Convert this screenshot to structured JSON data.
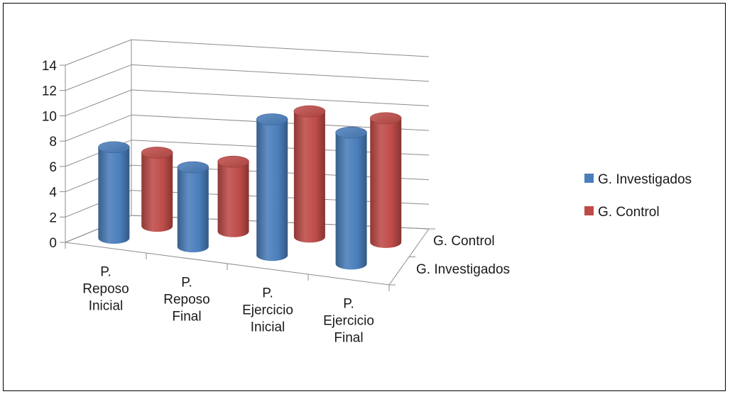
{
  "chart_data": {
    "type": "bar",
    "style": "3d-cylinder",
    "categories": [
      [
        "P.",
        "Reposo",
        "Inicial"
      ],
      [
        "P.",
        "Reposo",
        "Final"
      ],
      [
        "P.",
        "Ejercicio",
        "Inicial"
      ],
      [
        "P.",
        "Ejercicio",
        "Final"
      ]
    ],
    "series": [
      {
        "name": "G. Investigados",
        "values": [
          8,
          7,
          12,
          11.6
        ],
        "color": "#4a7ebb"
      },
      {
        "name": "G. Control",
        "values": [
          6.5,
          6.2,
          11.2,
          11.1
        ],
        "color": "#be4b48"
      }
    ],
    "y_ticks": [
      "0",
      "2",
      "4",
      "6",
      "8",
      "10",
      "12",
      "14"
    ],
    "ylim": [
      0,
      14
    ],
    "depth_labels": [
      "G. Control",
      "G. Investigados"
    ],
    "legend_position": "right",
    "grid": true
  }
}
